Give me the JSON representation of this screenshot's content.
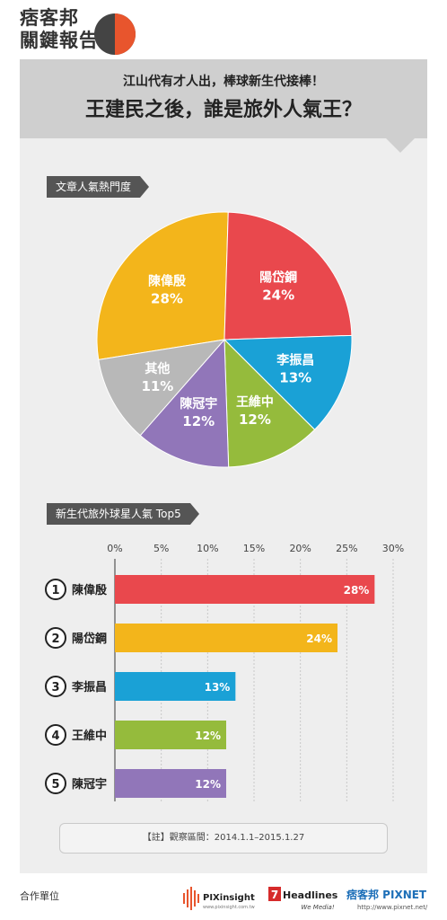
{
  "brand": {
    "line1": "痞客邦",
    "line2": "關鍵報告",
    "colors": {
      "dark": "#444444",
      "accent": "#e8552d"
    }
  },
  "header": {
    "subtitle": "江山代有才人出，棒球新生代接棒！",
    "title": "王建民之後，誰是旅外人氣王？"
  },
  "section_pie": {
    "label": "文章人氣熱門度"
  },
  "section_bar": {
    "label": "新生代旅外球星人氣 Top5"
  },
  "chart_data": [
    {
      "type": "pie",
      "title": "文章人氣熱門度",
      "slices": [
        {
          "label": "陳偉殷",
          "value": 28,
          "display": "28%",
          "color": "#f3b51b"
        },
        {
          "label": "陽岱鋼",
          "value": 24,
          "display": "24%",
          "color": "#e9484d"
        },
        {
          "label": "李振昌",
          "value": 13,
          "display": "13%",
          "color": "#1aa1d6"
        },
        {
          "label": "王維中",
          "value": 12,
          "display": "12%",
          "color": "#95bb3c"
        },
        {
          "label": "陳冠宇",
          "value": 12,
          "display": "12%",
          "color": "#9176b9"
        },
        {
          "label": "其他",
          "value": 11,
          "display": "11%",
          "color": "#b8b8b8"
        }
      ]
    },
    {
      "type": "bar",
      "title": "新生代旅外球星人氣 Top5",
      "orientation": "horizontal",
      "xlim": [
        0,
        30
      ],
      "ticks": [
        "0%",
        "5%",
        "10%",
        "15%",
        "20%",
        "25%",
        "30%"
      ],
      "grid": true,
      "bars": [
        {
          "rank": "1",
          "label": "陳偉殷",
          "value": 28,
          "display": "28%",
          "color": "#e9484d"
        },
        {
          "rank": "2",
          "label": "陽岱鋼",
          "value": 24,
          "display": "24%",
          "color": "#f3b51b"
        },
        {
          "rank": "3",
          "label": "李振昌",
          "value": 13,
          "display": "13%",
          "color": "#1aa1d6"
        },
        {
          "rank": "4",
          "label": "王維中",
          "value": 12,
          "display": "12%",
          "color": "#95bb3c"
        },
        {
          "rank": "5",
          "label": "陳冠宇",
          "value": 12,
          "display": "12%",
          "color": "#9176b9"
        }
      ]
    }
  ],
  "note": "【註】觀察區間：2014.1.1–2015.1.27",
  "footer": {
    "label": "合作單位",
    "partners": [
      {
        "name": "PIXinsight",
        "tagline": "www.pixinsight.com.tw"
      },
      {
        "name": "7Headlines",
        "tagline": "We Media!"
      },
      {
        "name": "痞客邦 PIXNET",
        "tagline": "http://www.pixnet.net/"
      }
    ]
  }
}
